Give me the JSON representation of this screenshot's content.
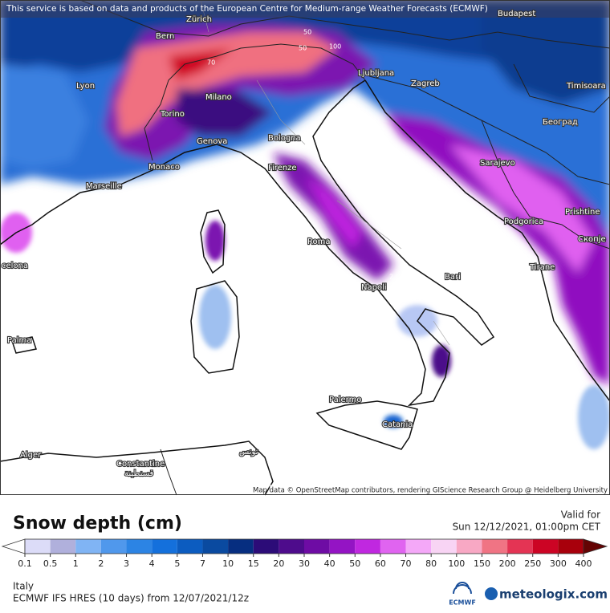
{
  "map": {
    "notice": "This service is based on data and products of the European Centre for Medium-range Weather Forecasts (ECMWF)",
    "cities": [
      "Bern",
      "Zürich",
      "Budapest",
      "Lyon",
      "Milano",
      "Ljubljana",
      "Zagreb",
      "Timisoara",
      "Torino",
      "Београд",
      "Genova",
      "Bologna",
      "Monaco",
      "Marseille",
      "Firenze",
      "Sarajevo",
      "Prishtine",
      "Podgorica",
      "Roma",
      "Скопје",
      "celona",
      "Tirane",
      "Bari",
      "Napoli",
      "Palma",
      "Palermo",
      "Catania",
      "Alger",
      "Constantine",
      "قسنطينة",
      "تونس"
    ],
    "contour_labels": [
      "50",
      "50",
      "100",
      "70",
      "2",
      "2"
    ],
    "attribution": "Map data © OpenStreetMap contributors, rendering GIScience Research Group @ Heidelberg University"
  },
  "panel": {
    "title": "Snow depth (cm)",
    "valid_label": "Valid for",
    "valid_time": "Sun 12/12/2021, 01:00pm CET",
    "legend": {
      "ticks": [
        0.1,
        0.5,
        1,
        2,
        3,
        4,
        5,
        7,
        10,
        15,
        20,
        30,
        40,
        50,
        60,
        70,
        80,
        100,
        150,
        200,
        250,
        300,
        400
      ],
      "colors": [
        "#dcdcf8",
        "#b0b0dc",
        "#80b4f4",
        "#5098ec",
        "#2c84e4",
        "#1470dc",
        "#0c5cc0",
        "#0a4aa0",
        "#062e80",
        "#2c0c78",
        "#4e0c8c",
        "#6e0ca4",
        "#9414c4",
        "#c028e0",
        "#e064f0",
        "#f4a8f8",
        "#f8d4f4",
        "#f8a8c4",
        "#f07484",
        "#e43454",
        "#cc0424",
        "#a8000c"
      ],
      "under_color": "#ffffff",
      "over_color": "#640404"
    },
    "region": "Italy",
    "model": "ECMWF IFS HRES (10 days) from 12/07/2021/12z",
    "logo_ecmwf": "ECMWF",
    "logo_meteologix": "meteologix.com"
  }
}
